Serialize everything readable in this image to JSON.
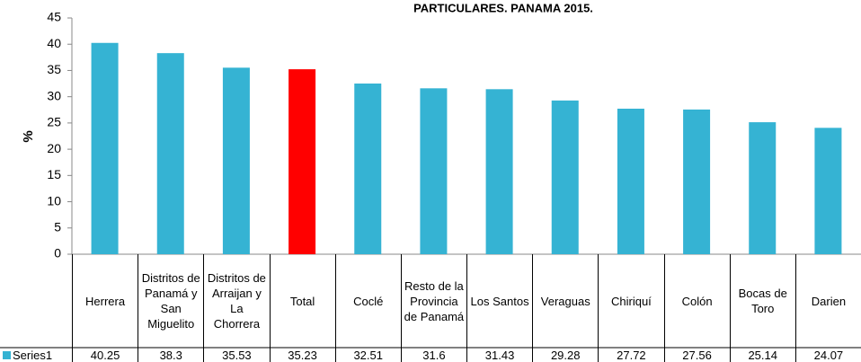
{
  "chart_data": {
    "type": "bar",
    "title": "PARTICULARES. PANAMA 2015.",
    "y_label": "%",
    "categories": [
      "Herrera",
      "Distritos de Panamá y San Miguelito",
      "Distritos de Arraijan y La Chorrera",
      "Total",
      "Coclé",
      "Resto de la Provincia de Panamá",
      "Los Santos",
      "Veraguas",
      "Chiriquí",
      "Colón",
      "Bocas de Toro",
      "Darien"
    ],
    "series": [
      {
        "name": "Series1",
        "color": "#35b3d3",
        "colors": [
          "#35b3d3",
          "#35b3d3",
          "#35b3d3",
          "#ff0000",
          "#35b3d3",
          "#35b3d3",
          "#35b3d3",
          "#35b3d3",
          "#35b3d3",
          "#35b3d3",
          "#35b3d3",
          "#35b3d3"
        ],
        "values": [
          40.25,
          38.3,
          35.53,
          35.23,
          32.51,
          31.6,
          31.43,
          29.28,
          27.72,
          27.56,
          25.14,
          24.07
        ]
      }
    ],
    "ylim": [
      0,
      45
    ],
    "yticks": [
      0,
      5,
      10,
      15,
      20,
      25,
      30,
      35,
      40,
      45
    ],
    "grid": false
  }
}
